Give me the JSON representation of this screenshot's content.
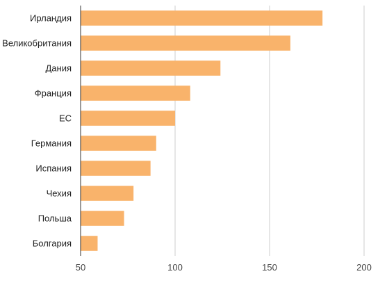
{
  "chart_data": {
    "type": "bar",
    "orientation": "horizontal",
    "categories": [
      "Ирландия",
      "Великобритания",
      "Дания",
      "Франция",
      "ЕС",
      "Германия",
      "Испания",
      "Чехия",
      "Польша",
      "Болгария"
    ],
    "values": [
      178,
      161,
      124,
      108,
      100,
      90,
      87,
      78,
      73,
      59
    ],
    "x_ticks": [
      50,
      100,
      150,
      200
    ],
    "xlim": [
      50,
      200
    ],
    "title": "",
    "xlabel": "",
    "ylabel": "",
    "grid": "vertical",
    "legend": "none",
    "bar_color": "#f9b36b",
    "grid_color": "#cccccc",
    "axis_color": "#333333"
  }
}
